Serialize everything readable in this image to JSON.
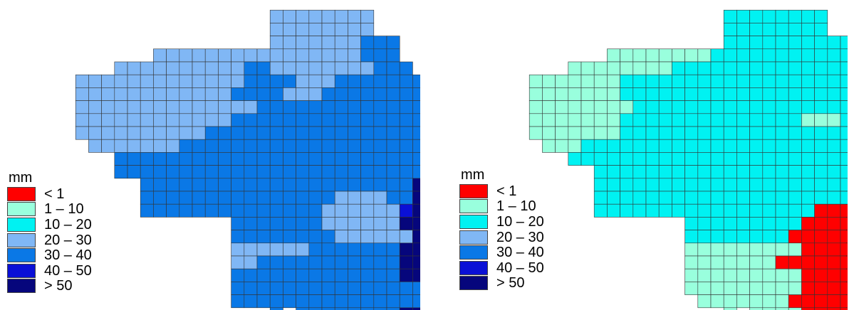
{
  "legend": {
    "unit": "mm",
    "classes": [
      {
        "label": "< 1",
        "color": "#ff0000"
      },
      {
        "label": "1 – 10",
        "color": "#99ffdd"
      },
      {
        "label": "10 – 20",
        "color": "#00f2f2"
      },
      {
        "label": "20 – 30",
        "color": "#80b7f5"
      },
      {
        "label": "30 – 40",
        "color": "#0a78e6"
      },
      {
        "label": "40 – 50",
        "color": "#0a10d6"
      },
      {
        "label": "> 50",
        "color": "#06067c"
      }
    ]
  },
  "maps": [
    {
      "id": "left",
      "grid_origin_col": 3,
      "rows": [
        "................................................................",
        "..................44444444......................................",
        "..................44444444......................................",
        "..................4444444555....................................",
        ".........4444444444444444555....................................",
        "......44444444445544444444555...................................",
        "...4444444444444555544455555555.................................",
        "...44444444444455554445555555555................................",
        "...44444444444444555555555555555................................",
        "...4444444444445555555555555555555..............................",
        "...4444444444555555555555555555555.7............................",
        "....444444455555555555555555555555777...........................",
        "......5555555555555555555555555577777777........................",
        "......5555555555555555555555555777777777........................",
        "........55555555555555555555577777777777........................",
        "........555555555555555444455777777777677.......................",
        "........5555555555555544444467777777776677......................",
        "...............5555555444444777777777666777.....................",
        "...............555555554444447777777766677......................",
        "...............444444555555577777777777666......................",
        "...............4455555555555777777777777777.....................",
        "...............55555555555557777777777777.......................",
        "...............5555555555555555555777777........................",
        "...............55555555555555555557777..........................",
        "..................5.5555555577777777............................",
        "........................7777777777..............................",
        "............................777777..............................",
        "...........................7777777..............................",
        ".............................777777.............................",
        "................................................................"
      ]
    },
    {
      "id": "right",
      "grid_origin_col": 38,
      "rows": [
        "................................................................",
        "..................33333333......................................",
        "..................33333333......................................",
        "..................3333333333....................................",
        ".........222222223333333333333..................................",
        "......22222222333333333333333333................................",
        "...22222223333333333333333333333................................",
        "...222222233333333333333333333333...............................",
        "...22222222333333333333333333333333.............................",
        "...222222233333333333333222333333333............................",
        "...2222222333333333333333333333333333...........................",
        "....22233333333333333333333333333333333.........................",
        "......3333333333333333333333333333333333........................",
        "........3333333333333333333333333331111.........................",
        "........3333333333333333333333311111111.........................",
        "........33333333333333333333111111111111........................",
        "........3333333333333333311111111111111.........................",
        "...............3333333331111111111111...........................",
        "...............3333333311111111111111...........................",
        "...............222222222111111111111............................",
        "...............22222221111111111111.............................",
        "...............222222222111111111111............................",
        "...............22222222211111111111.............................",
        "................2222222111111111................................",
        "..................2.2222111111111...............................",
        "........................11111111................................",
        "..........................111111................................",
        "...........................11111................................",
        "..............................111...............................",
        "................................................................"
      ]
    }
  ]
}
